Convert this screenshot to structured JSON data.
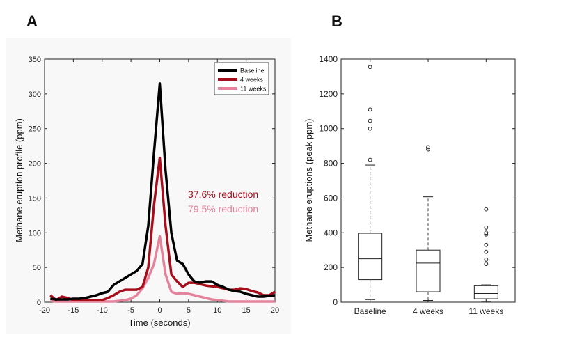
{
  "colors": {
    "baseline": "#000000",
    "week4": "#a50e1a",
    "week11": "#e5829c",
    "panelA_bg": "#f8f8f8"
  },
  "panels": {
    "a_label": "A",
    "b_label": "B"
  },
  "chart_data": [
    {
      "type": "line",
      "xlabel": "Time (seconds)",
      "ylabel": "Methane eruption profile (ppm)",
      "xlim": [
        -20,
        20
      ],
      "ylim": [
        0,
        350
      ],
      "xticks": [
        -20,
        -15,
        -10,
        -5,
        0,
        5,
        10,
        15,
        20
      ],
      "yticks": [
        0,
        50,
        100,
        150,
        200,
        250,
        300,
        350
      ],
      "legend_position": "top-right",
      "annotations": [
        {
          "text": "37.6% reduction",
          "color": "#a50e1a"
        },
        {
          "text": "79.5% reduction",
          "color": "#e5829c"
        }
      ],
      "series": [
        {
          "name": "Baseline",
          "color": "#000000",
          "x": [
            -19,
            -18,
            -17,
            -16,
            -15,
            -14,
            -13,
            -12,
            -11,
            -10,
            -9,
            -8,
            -7,
            -6,
            -5,
            -4,
            -3,
            -2,
            -1,
            0,
            1,
            2,
            3,
            4,
            5,
            6,
            7,
            8,
            9,
            10,
            11,
            12,
            13,
            14,
            15,
            16,
            17,
            18,
            19,
            20
          ],
          "y": [
            5,
            4,
            4,
            4,
            5,
            5,
            6,
            8,
            10,
            13,
            15,
            25,
            30,
            35,
            40,
            45,
            55,
            110,
            215,
            315,
            190,
            100,
            60,
            55,
            40,
            30,
            28,
            30,
            30,
            25,
            22,
            18,
            16,
            15,
            12,
            10,
            8,
            8,
            9,
            10
          ]
        },
        {
          "name": "4 weeks",
          "color": "#a50e1a",
          "x": [
            -19,
            -18,
            -17,
            -16,
            -15,
            -14,
            -13,
            -12,
            -11,
            -10,
            -9,
            -8,
            -7,
            -6,
            -5,
            -4,
            -3,
            -2,
            -1,
            0,
            1,
            2,
            3,
            4,
            5,
            6,
            7,
            8,
            9,
            10,
            11,
            12,
            13,
            14,
            15,
            16,
            17,
            18,
            19,
            20
          ],
          "y": [
            10,
            3,
            8,
            6,
            3,
            3,
            3,
            3,
            3,
            3,
            6,
            10,
            15,
            18,
            18,
            18,
            22,
            50,
            140,
            208,
            110,
            40,
            30,
            22,
            28,
            28,
            26,
            24,
            23,
            22,
            20,
            18,
            18,
            20,
            19,
            16,
            14,
            10,
            10,
            15
          ]
        },
        {
          "name": "11 weeks",
          "color": "#e5829c",
          "x": [
            -19,
            -18,
            -17,
            -16,
            -15,
            -14,
            -13,
            -12,
            -11,
            -10,
            -9,
            -8,
            -7,
            -6,
            -5,
            -4,
            -3,
            -2,
            -1,
            0,
            1,
            2,
            3,
            4,
            5,
            6,
            7,
            8,
            9,
            10,
            11,
            12,
            13,
            14,
            15,
            16,
            17,
            18,
            19,
            20
          ],
          "y": [
            2,
            1,
            1,
            1,
            1,
            1,
            1,
            1,
            1,
            1,
            1,
            1,
            2,
            3,
            5,
            10,
            20,
            35,
            55,
            95,
            40,
            15,
            12,
            13,
            12,
            10,
            8,
            6,
            4,
            3,
            2,
            1,
            1,
            1,
            1,
            1,
            1,
            1,
            1,
            1
          ]
        }
      ]
    },
    {
      "type": "box",
      "xlabel": "",
      "ylabel": "Methane eruptions (peak ppm)",
      "ylim": [
        0,
        1400
      ],
      "yticks": [
        0,
        200,
        400,
        600,
        800,
        1000,
        1200,
        1400
      ],
      "categories": [
        "Baseline",
        "4 weeks",
        "11 weeks"
      ],
      "boxes": [
        {
          "whisker_low": 15,
          "q1": 130,
          "median": 250,
          "q3": 397,
          "whisker_high": 790,
          "outliers": [
            820,
            1000,
            1045,
            1110,
            1355
          ]
        },
        {
          "whisker_low": 10,
          "q1": 60,
          "median": 225,
          "q3": 300,
          "whisker_high": 607,
          "outliers": [
            880,
            893
          ]
        },
        {
          "whisker_low": 5,
          "q1": 20,
          "median": 50,
          "q3": 95,
          "whisker_high": 100,
          "outliers": [
            220,
            245,
            290,
            330,
            390,
            400,
            430,
            535
          ]
        }
      ]
    }
  ]
}
